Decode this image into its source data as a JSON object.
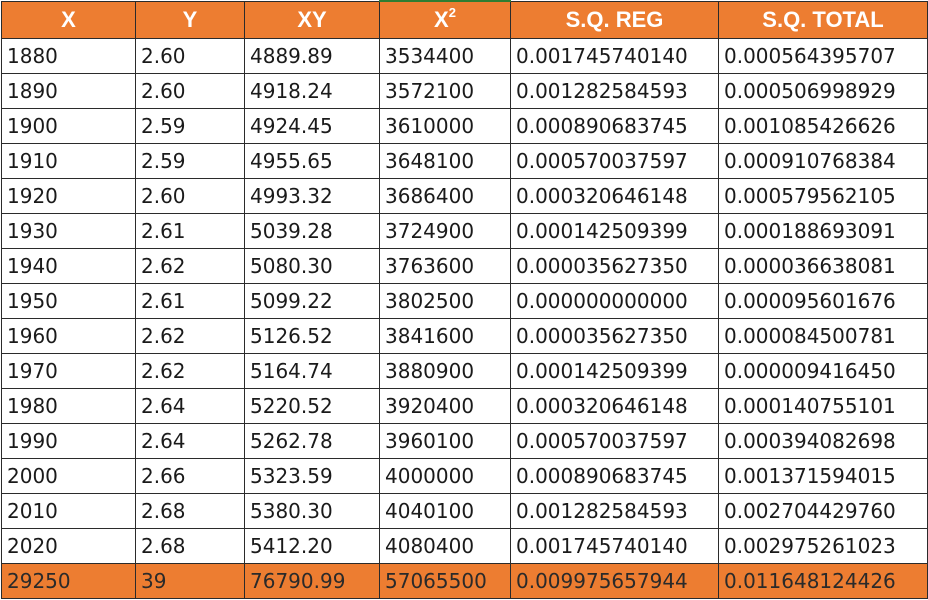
{
  "colors": {
    "header_bg": "#ed7d31",
    "total_bg": "#ed7d31",
    "header_text": "#ffffff"
  },
  "headers": [
    "X",
    "Y",
    "XY",
    "X",
    "S.Q. REG",
    "S.Q. TOTAL"
  ],
  "header_superscript": "2",
  "rows": [
    [
      "1880",
      "2.60",
      "4889.89",
      "3534400",
      "0.001745740140",
      "0.000564395707"
    ],
    [
      "1890",
      "2.60",
      "4918.24",
      "3572100",
      "0.001282584593",
      "0.000506998929"
    ],
    [
      "1900",
      "2.59",
      "4924.45",
      "3610000",
      "0.000890683745",
      "0.001085426626"
    ],
    [
      "1910",
      "2.59",
      "4955.65",
      "3648100",
      "0.000570037597",
      "0.000910768384"
    ],
    [
      "1920",
      "2.60",
      "4993.32",
      "3686400",
      "0.000320646148",
      "0.000579562105"
    ],
    [
      "1930",
      "2.61",
      "5039.28",
      "3724900",
      "0.000142509399",
      "0.000188693091"
    ],
    [
      "1940",
      "2.62",
      "5080.30",
      "3763600",
      "0.000035627350",
      "0.000036638081"
    ],
    [
      "1950",
      "2.61",
      "5099.22",
      "3802500",
      "0.000000000000",
      "0.000095601676"
    ],
    [
      "1960",
      "2.62",
      "5126.52",
      "3841600",
      "0.000035627350",
      "0.000084500781"
    ],
    [
      "1970",
      "2.62",
      "5164.74",
      "3880900",
      "0.000142509399",
      "0.000009416450"
    ],
    [
      "1980",
      "2.64",
      "5220.52",
      "3920400",
      "0.000320646148",
      "0.000140755101"
    ],
    [
      "1990",
      "2.64",
      "5262.78",
      "3960100",
      "0.000570037597",
      "0.000394082698"
    ],
    [
      "2000",
      "2.66",
      "5323.59",
      "4000000",
      "0.000890683745",
      "0.001371594015"
    ],
    [
      "2010",
      "2.68",
      "5380.30",
      "4040100",
      "0.001282584593",
      "0.002704429760"
    ],
    [
      "2020",
      "2.68",
      "5412.20",
      "4080400",
      "0.001745740140",
      "0.002975261023"
    ]
  ],
  "totals": [
    "29250",
    "39",
    "76790.99",
    "57065500",
    "0.009975657944",
    "0.011648124426"
  ]
}
